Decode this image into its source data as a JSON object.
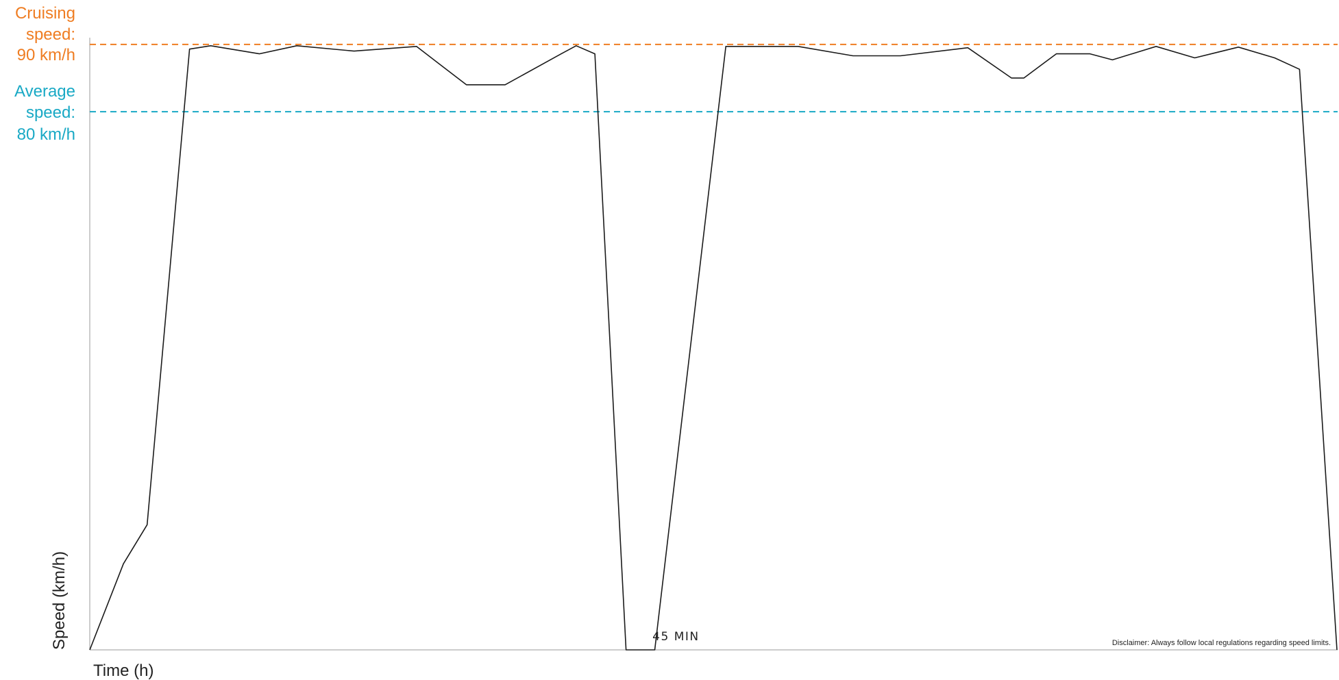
{
  "chart_data": {
    "type": "line",
    "xlabel": "Time (h)",
    "ylabel": "Speed (km/h)",
    "ylim": [
      0,
      91
    ],
    "xlim": [
      0,
      100
    ],
    "grid": false,
    "series": [
      {
        "color": "#1a1a1a",
        "x": [
          0,
          2.7,
          4.6,
          8.0,
          9.7,
          13.6,
          16.6,
          21.2,
          26.2,
          30.2,
          33.3,
          37.8,
          39.0,
          40.5,
          43.0,
          45.3,
          51.0,
          52.1,
          56.8,
          61.2,
          65.0,
          70.4,
          73.9,
          74.9,
          77.5,
          80.2,
          82.0,
          85.5,
          88.6,
          92.1,
          95.0,
          97.0,
          100.0
        ],
        "y": [
          0,
          12.8,
          18.6,
          89.3,
          89.8,
          88.6,
          89.8,
          89.0,
          89.7,
          84.0,
          84.0,
          88.6,
          89.8,
          88.6,
          0,
          0,
          89.7,
          89.7,
          89.7,
          88.3,
          88.3,
          89.5,
          85.0,
          85.0,
          88.6,
          88.6,
          87.7,
          89.7,
          88.0,
          89.6,
          88.0,
          86.3,
          0
        ]
      }
    ],
    "reference_lines": [
      {
        "label": "Cruising speed: 90 km/h",
        "value": 90,
        "color": "#ef7d22",
        "style": "dashed"
      },
      {
        "label": "Average speed: 80 km/h",
        "value": 80,
        "color": "#19a9c5",
        "style": "dashed"
      }
    ],
    "annotations": [
      {
        "text": "45 MIN",
        "x_start": 43.0,
        "x_end": 51.0,
        "y": 0
      }
    ]
  },
  "cruising_label": {
    "line1": "Cruising",
    "line2": "speed:",
    "line3": "90 km/h"
  },
  "average_label": {
    "line1": "Average",
    "line2": "speed:",
    "line3": "80 km/h"
  },
  "disclaimer": "Disclaimer: Always follow local regulations regarding speed limits."
}
